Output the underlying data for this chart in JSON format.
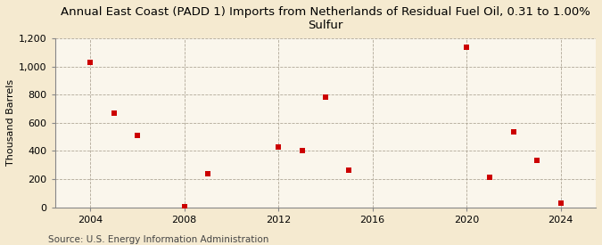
{
  "title": "Annual East Coast (PADD 1) Imports from Netherlands of Residual Fuel Oil, 0.31 to 1.00%\nSulfur",
  "ylabel": "Thousand Barrels",
  "source": "Source: U.S. Energy Information Administration",
  "background_color": "#f5ead0",
  "plot_bg_color": "#faf6ec",
  "marker_color": "#cc0000",
  "marker_size": 5,
  "years": [
    2004,
    2005,
    2006,
    2008,
    2009,
    2012,
    2013,
    2014,
    2015,
    2020,
    2021,
    2022,
    2023,
    2024
  ],
  "values": [
    1030,
    670,
    510,
    5,
    240,
    430,
    405,
    780,
    265,
    1140,
    210,
    535,
    330,
    30
  ],
  "xlim": [
    2002.5,
    2025.5
  ],
  "ylim": [
    0,
    1200
  ],
  "yticks": [
    0,
    200,
    400,
    600,
    800,
    1000,
    1200
  ],
  "ytick_labels": [
    "0",
    "200",
    "400",
    "600",
    "800",
    "1,000",
    "1,200"
  ],
  "xticks": [
    2004,
    2008,
    2012,
    2016,
    2020,
    2024
  ],
  "title_fontsize": 9.5,
  "tick_fontsize": 8,
  "ylabel_fontsize": 8,
  "source_fontsize": 7.5
}
